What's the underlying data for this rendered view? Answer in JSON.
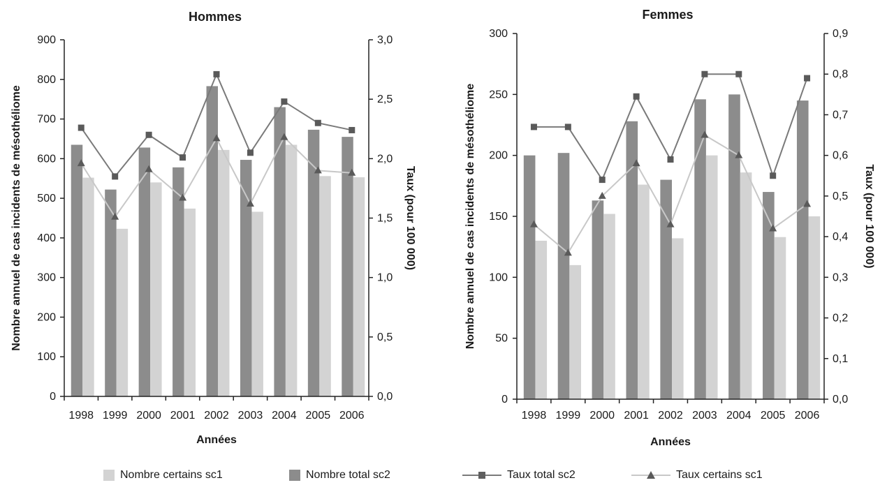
{
  "chart_data": [
    {
      "type": "bar",
      "title": "Hommes",
      "xlabel": "Années",
      "ylabel": "Nombre annuel de cas incidents de mésothéliome",
      "y2label": "Taux (pour 100 000)",
      "categories": [
        "1998",
        "1999",
        "2000",
        "2001",
        "2002",
        "2003",
        "2004",
        "2005",
        "2006"
      ],
      "ylim": [
        0,
        900
      ],
      "yticks": [
        "0",
        "100",
        "200",
        "300",
        "400",
        "500",
        "600",
        "700",
        "800",
        "900"
      ],
      "y2lim": [
        0,
        3.0
      ],
      "y2ticks": [
        "0,0",
        "0,5",
        "1,0",
        "1,5",
        "2,0",
        "2,5",
        "3,0"
      ],
      "series": [
        {
          "name": "Nombre total sc2",
          "kind": "bar",
          "axis": "left",
          "color": "#8c8c8c",
          "values": [
            635,
            522,
            628,
            578,
            783,
            597,
            730,
            673,
            655
          ]
        },
        {
          "name": "Nombre certains sc1",
          "kind": "bar",
          "axis": "left",
          "color": "#d3d3d3",
          "values": [
            552,
            423,
            540,
            474,
            622,
            466,
            635,
            556,
            553
          ]
        },
        {
          "name": "Taux total sc2",
          "kind": "line",
          "axis": "right",
          "marker": "square",
          "color": "#7a7a7a",
          "values": [
            2.26,
            1.85,
            2.2,
            2.01,
            2.71,
            2.05,
            2.48,
            2.3,
            2.24
          ]
        },
        {
          "name": "Taux certains sc1",
          "kind": "line",
          "axis": "right",
          "marker": "triangle",
          "color": "#c8c8c8",
          "values": [
            1.96,
            1.51,
            1.91,
            1.67,
            2.17,
            1.62,
            2.18,
            1.9,
            1.88
          ]
        }
      ]
    },
    {
      "type": "bar",
      "title": "Femmes",
      "xlabel": "Années",
      "ylabel": "Nombre annuel de cas incidents de mésothéliome",
      "y2label": "Taux (pour 100 000)",
      "categories": [
        "1998",
        "1999",
        "2000",
        "2001",
        "2002",
        "2003",
        "2004",
        "2005",
        "2006"
      ],
      "ylim": [
        0,
        300
      ],
      "yticks": [
        "0",
        "50",
        "100",
        "150",
        "200",
        "250",
        "300"
      ],
      "y2lim": [
        0,
        0.9
      ],
      "y2ticks": [
        "0,0",
        "0,1",
        "0,2",
        "0,3",
        "0,4",
        "0,5",
        "0,6",
        "0,7",
        "0,8",
        "0,9"
      ],
      "series": [
        {
          "name": "Nombre total sc2",
          "kind": "bar",
          "axis": "left",
          "color": "#8c8c8c",
          "values": [
            200,
            202,
            163,
            228,
            180,
            246,
            250,
            170,
            245
          ]
        },
        {
          "name": "Nombre certains sc1",
          "kind": "bar",
          "axis": "left",
          "color": "#d3d3d3",
          "values": [
            130,
            110,
            152,
            176,
            132,
            200,
            186,
            133,
            150
          ]
        },
        {
          "name": "Taux total sc2",
          "kind": "line",
          "axis": "right",
          "marker": "square",
          "color": "#7a7a7a",
          "values": [
            0.67,
            0.67,
            0.54,
            0.745,
            0.59,
            0.8,
            0.8,
            0.55,
            0.79
          ]
        },
        {
          "name": "Taux certains sc1",
          "kind": "line",
          "axis": "right",
          "marker": "triangle",
          "color": "#c8c8c8",
          "values": [
            0.43,
            0.36,
            0.5,
            0.58,
            0.43,
            0.65,
            0.6,
            0.42,
            0.48
          ]
        }
      ]
    }
  ],
  "legend": [
    {
      "label": "Nombre certains sc1",
      "kind": "bar",
      "color": "#d3d3d3"
    },
    {
      "label": "Nombre total sc2",
      "kind": "bar",
      "color": "#8c8c8c"
    },
    {
      "label": "Taux total sc2",
      "kind": "line",
      "marker": "square",
      "color": "#7a7a7a"
    },
    {
      "label": "Taux certains sc1",
      "kind": "line",
      "marker": "triangle",
      "color": "#c8c8c8"
    }
  ]
}
